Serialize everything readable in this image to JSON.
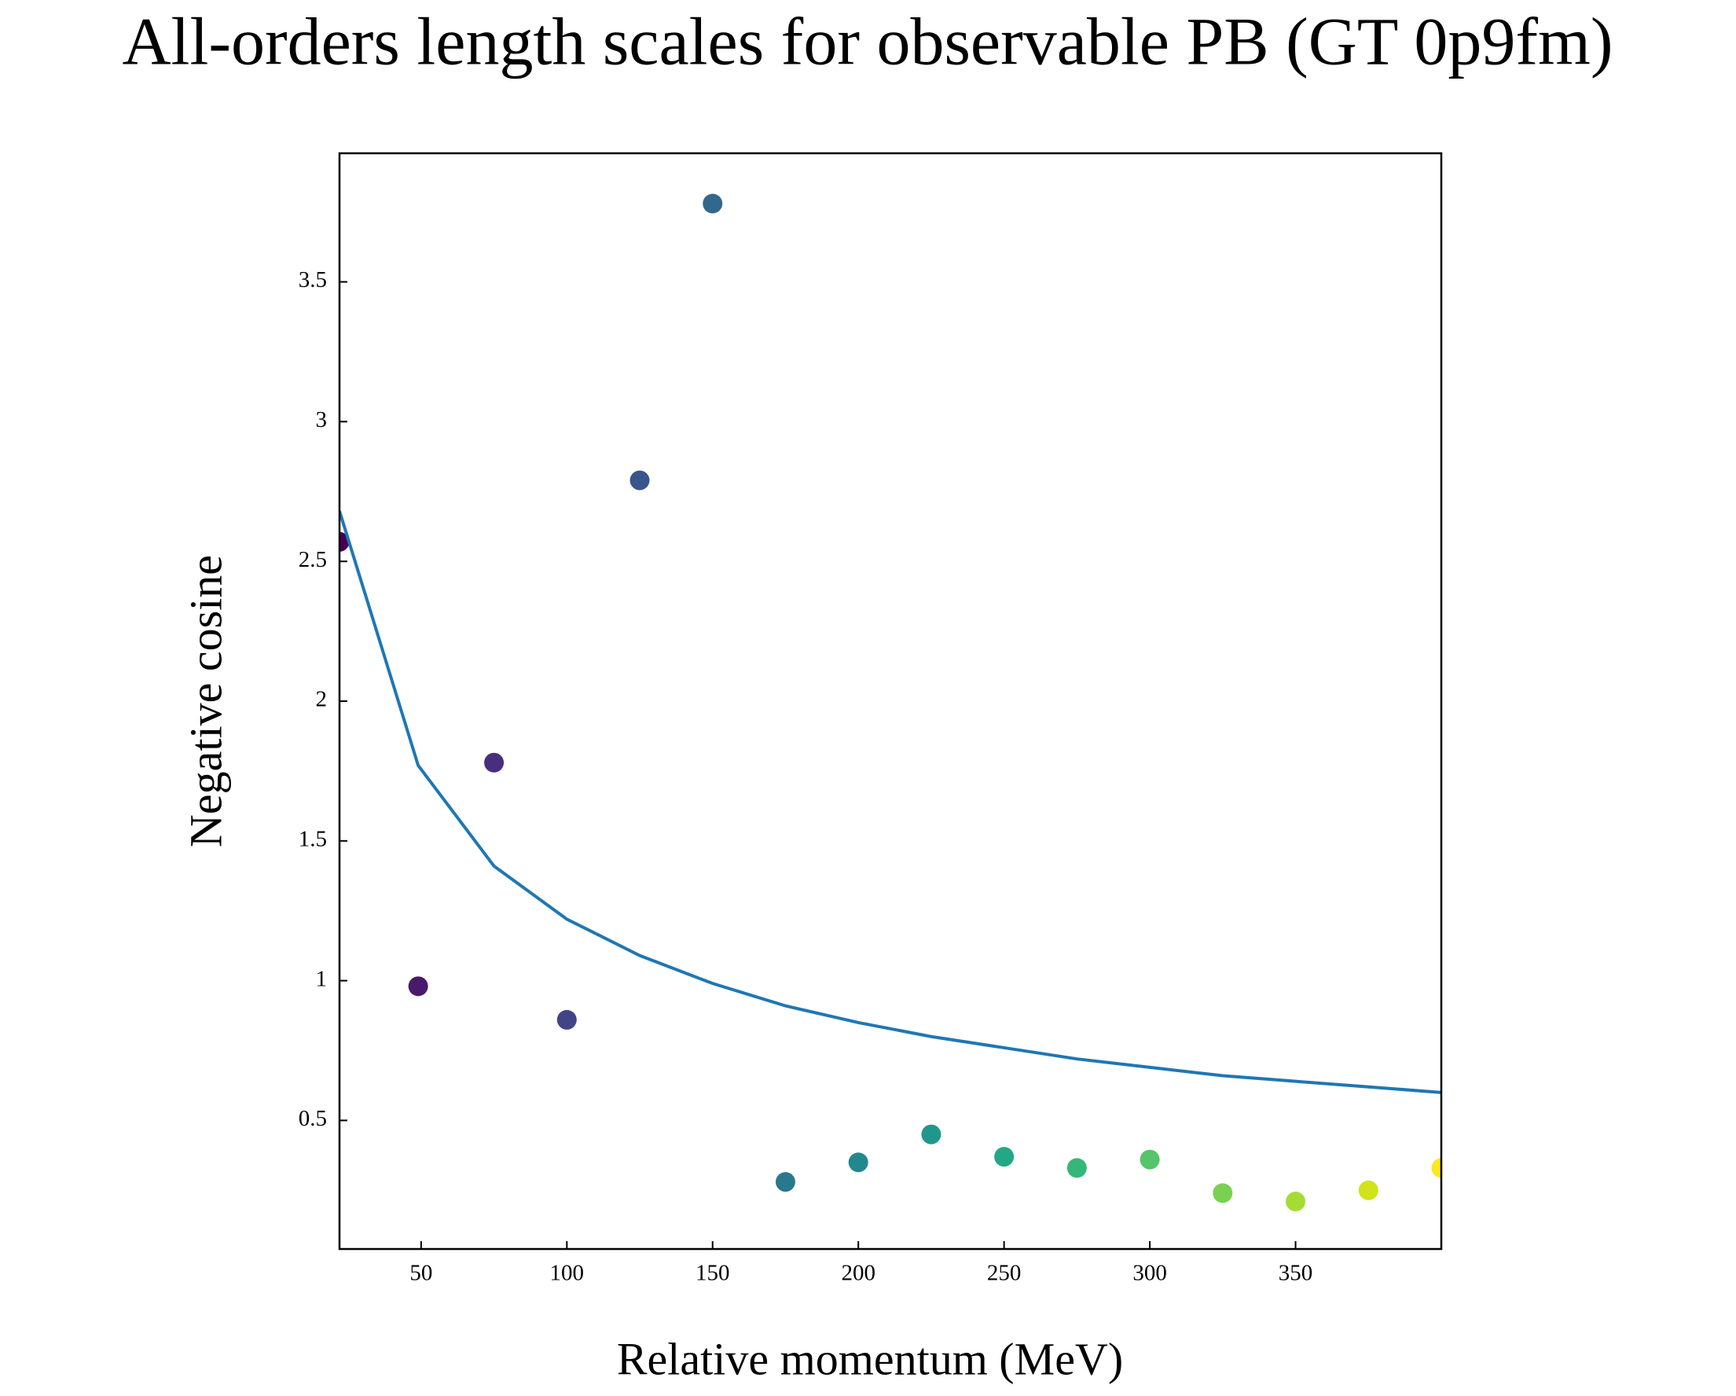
{
  "chart_data": {
    "type": "scatter",
    "title": "All-orders length scales for observable PB (GT 0p9fm)",
    "x_label": "Relative momentum (MeV)",
    "y_label": "Negative cosine",
    "xlim": [
      22,
      400
    ],
    "ylim": [
      0.04,
      3.96
    ],
    "xticks": [
      50,
      100,
      150,
      200,
      250,
      300,
      350
    ],
    "yticks": [
      0.5,
      1.0,
      1.5,
      2.0,
      2.5,
      3.0,
      3.5
    ],
    "series": [
      {
        "type": "scatter",
        "x": [
          22,
          49,
          75,
          100,
          125,
          150,
          175,
          200,
          225,
          250,
          275,
          300,
          325,
          350,
          375,
          400
        ],
        "values": [
          2.57,
          0.98,
          1.78,
          0.86,
          2.79,
          3.78,
          0.28,
          0.35,
          0.45,
          0.37,
          0.33,
          0.36,
          0.24,
          0.21,
          0.25,
          0.33
        ],
        "colors": [
          "#440154",
          "#481a6c",
          "#472f7d",
          "#414487",
          "#39568c",
          "#31688e",
          "#2a788e",
          "#23888e",
          "#1f988b",
          "#22a884",
          "#35b779",
          "#54c568",
          "#7ad151",
          "#a5db36",
          "#d2e21b",
          "#fde725"
        ]
      },
      {
        "type": "line",
        "color": "#1f77b4",
        "x": [
          22,
          49,
          75,
          100,
          125,
          150,
          175,
          200,
          225,
          250,
          275,
          300,
          325,
          350,
          375,
          400
        ],
        "values": [
          2.68,
          1.77,
          1.41,
          1.22,
          1.09,
          0.99,
          0.91,
          0.85,
          0.8,
          0.76,
          0.72,
          0.69,
          0.66,
          0.64,
          0.62,
          0.6
        ]
      }
    ]
  }
}
